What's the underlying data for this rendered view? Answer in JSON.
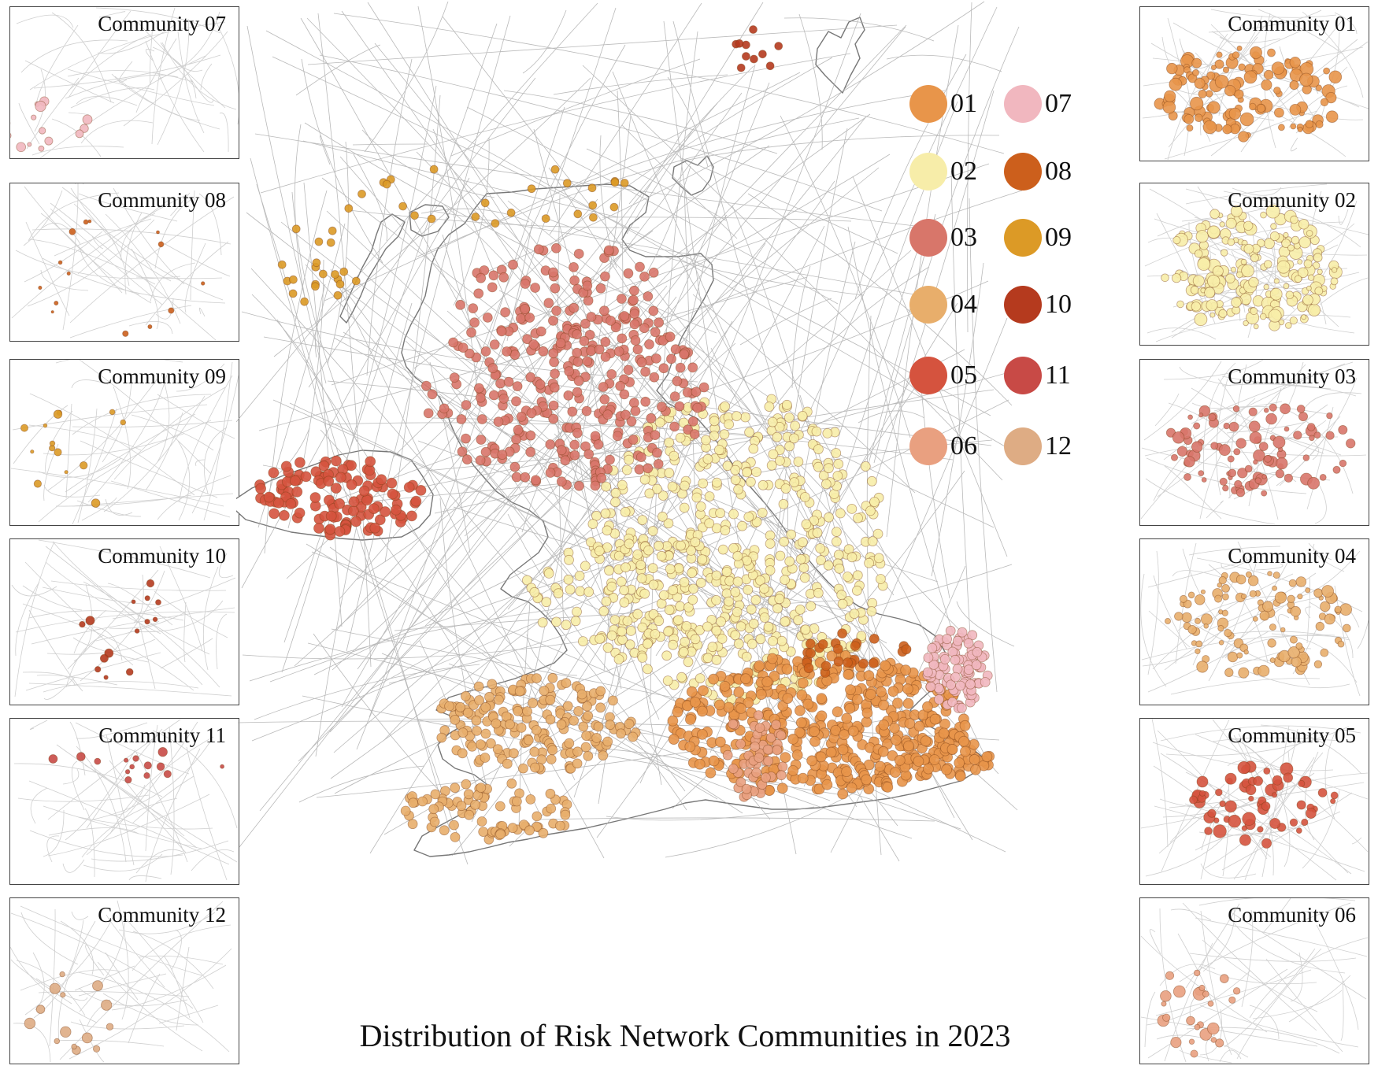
{
  "title": "Distribution of Risk Network Communities in 2023",
  "communities": [
    {
      "id": "01",
      "color": "#E8954A"
    },
    {
      "id": "02",
      "color": "#F7EDA9"
    },
    {
      "id": "03",
      "color": "#D8766A"
    },
    {
      "id": "04",
      "color": "#E8AE6B"
    },
    {
      "id": "05",
      "color": "#D5533E"
    },
    {
      "id": "06",
      "color": "#E9A080"
    },
    {
      "id": "07",
      "color": "#F1B7BF"
    },
    {
      "id": "08",
      "color": "#CC5F1C"
    },
    {
      "id": "09",
      "color": "#DC9A26"
    },
    {
      "id": "10",
      "color": "#B53A1E"
    },
    {
      "id": "11",
      "color": "#C84A46"
    },
    {
      "id": "12",
      "color": "#DEAC84"
    }
  ],
  "insets": {
    "left": [
      {
        "title": "Community 07",
        "community": "07"
      },
      {
        "title": "Community 08",
        "community": "08"
      },
      {
        "title": "Community 09",
        "community": "09"
      },
      {
        "title": "Community 10",
        "community": "10"
      },
      {
        "title": "Community 11",
        "community": "11"
      },
      {
        "title": "Community 12",
        "community": "12"
      }
    ],
    "right": [
      {
        "title": "Community 01",
        "community": "01"
      },
      {
        "title": "Community 02",
        "community": "02"
      },
      {
        "title": "Community 03",
        "community": "03"
      },
      {
        "title": "Community 04",
        "community": "04"
      },
      {
        "title": "Community 05",
        "community": "05"
      },
      {
        "title": "Community 06",
        "community": "06"
      }
    ]
  }
}
